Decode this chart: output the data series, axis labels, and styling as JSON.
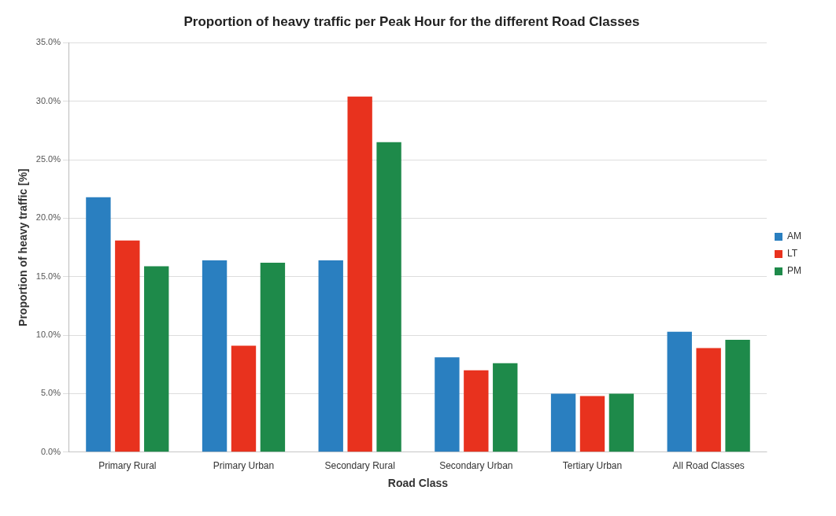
{
  "chart_data": {
    "type": "bar",
    "title": "Proportion of heavy traffic per Peak Hour for the different Road Classes",
    "xlabel": "Road Class",
    "ylabel": "Proportion of heavy traffic [%]",
    "categories": [
      "Primary Rural",
      "Primary Urban",
      "Secondary Rural",
      "Secondary Urban",
      "Tertiary Urban",
      "All Road Classes"
    ],
    "series": [
      {
        "name": "AM",
        "color": "#2a7fc0",
        "values": [
          21.8,
          16.4,
          16.4,
          8.1,
          5.0,
          10.3
        ]
      },
      {
        "name": "LT",
        "color": "#e8321e",
        "values": [
          18.1,
          9.1,
          30.4,
          7.0,
          4.8,
          8.9
        ]
      },
      {
        "name": "PM",
        "color": "#1e8a4a",
        "values": [
          15.9,
          16.2,
          26.5,
          7.6,
          5.0,
          9.6
        ]
      }
    ],
    "ylim": [
      0,
      35
    ],
    "yticks": [
      {
        "value": 0,
        "label": "0.0%"
      },
      {
        "value": 5,
        "label": "5.0%"
      },
      {
        "value": 10,
        "label": "10.0%"
      },
      {
        "value": 15,
        "label": "15.0%"
      },
      {
        "value": 20,
        "label": "20.0%"
      },
      {
        "value": 25,
        "label": "25.0%"
      },
      {
        "value": 30,
        "label": "30.0%"
      },
      {
        "value": 35,
        "label": "35.0%"
      }
    ],
    "grid": "y",
    "legend": "right"
  }
}
